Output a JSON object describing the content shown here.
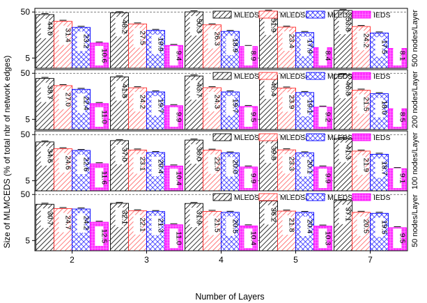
{
  "chart_data": {
    "type": "bar",
    "ylabel": "Size of MLMCEDS (% of total nbr of network edges)",
    "xlabel": "Number of Layers",
    "categories": [
      "2",
      "3",
      "4",
      "5",
      "7"
    ],
    "yscale": "log",
    "ylim": [
      3,
      60
    ],
    "yticks": [
      "5",
      "50"
    ],
    "gridlines": [
      5,
      50
    ],
    "legend_position": "top-right",
    "series_styles": [
      {
        "name": "MLEDS#1",
        "color": "#d9d9d9",
        "pattern": "diag-black"
      },
      {
        "name": "MLEDS#2",
        "color": "#ff8080",
        "pattern": "diag-red"
      },
      {
        "name": "MLEDS#3",
        "color": "#1a1aff",
        "pattern": "cross-blue"
      },
      {
        "name": "IEDS",
        "color": "#ff33ff",
        "pattern": "grid-magenta"
      }
    ],
    "panels": [
      {
        "side_label": "500 nodes/Layer",
        "series": [
          {
            "name": "MLEDS#1",
            "values": [
              44.0,
              48.2,
              50.3,
              51.9,
              53.8
            ],
            "labels": [
              "44.0",
              "48.2",
              "50.3",
              "51.9",
              "53.8"
            ]
          },
          {
            "name": "MLEDS#2",
            "values": [
              31.4,
              27.5,
              26.3,
              23.4,
              24.2
            ],
            "labels": [
              "31.4",
              "27.5",
              "26.3",
              "23.4",
              "24.2"
            ]
          },
          {
            "name": "MLEDS#3",
            "values": [
              23.2,
              19.9,
              18.9,
              17.9,
              17.5
            ],
            "labels": [
              "23.2",
              "19.9",
              "18.9",
              "17.9",
              "17.5"
            ]
          },
          {
            "name": "IEDS",
            "values": [
              10.6,
              9.4,
              8.9,
              8.4,
              8.1
            ],
            "labels": [
              "10.6",
              "9.4",
              "8.9",
              "8.4",
              "8.1"
            ]
          }
        ]
      },
      {
        "side_label": "200 nodes/Layer",
        "series": [
          {
            "name": "MLEDS#1",
            "values": [
              38.7,
              41.8,
              43.7,
              45.4,
              46.8
            ],
            "labels": [
              "38.7",
              "41.8",
              "43.7",
              "45.4",
              "46.8"
            ]
          },
          {
            "name": "MLEDS#2",
            "values": [
              27.0,
              24.2,
              24.3,
              23.9,
              21.5
            ],
            "labels": [
              "27.0",
              "24.2",
              "24.3",
              "23.9",
              "21.5"
            ]
          },
          {
            "name": "MLEDS#3",
            "values": [
              22.4,
              19.7,
              19.7,
              19.1,
              18.0
            ],
            "labels": [
              "22.4",
              "19.7",
              "19.7",
              "19.1",
              "18.0"
            ]
          },
          {
            "name": "IEDS",
            "values": [
              11.0,
              9.9,
              9.5,
              9.2,
              8.5
            ],
            "labels": [
              "11.0",
              "9.9",
              "9.5",
              "9.2",
              "8.5"
            ]
          }
        ]
      },
      {
        "side_label": "100 nodes/Layer",
        "series": [
          {
            "name": "MLEDS#1",
            "values": [
              34.6,
              37.0,
              38.0,
              39.8,
              41.3
            ],
            "labels": [
              "34.6",
              "37.0",
              "38.0",
              "39.8",
              "41.3"
            ]
          },
          {
            "name": "MLEDS#2",
            "values": [
              24.6,
              23.1,
              22.9,
              23.3,
              21.9
            ],
            "labels": [
              "24.6",
              "23.1",
              "22.9",
              "23.3",
              "21.9"
            ]
          },
          {
            "name": "MLEDS#3",
            "values": [
              22.6,
              20.4,
              20.0,
              20.1,
              18.7
            ],
            "labels": [
              "22.6",
              "20.4",
              "20.0",
              "20.1",
              "18.7"
            ]
          },
          {
            "name": "IEDS",
            "values": [
              11.6,
              10.4,
              9.9,
              9.9,
              9.1
            ],
            "labels": [
              "11.6",
              "10.4",
              "9.9",
              "9.9",
              "9.1"
            ]
          }
        ]
      },
      {
        "side_label": "50 nodes/Layer",
        "series": [
          {
            "name": "MLEDS#1",
            "values": [
              30.7,
              32.1,
              31.9,
              36.2,
              37.1
            ],
            "labels": [
              "30.7",
              "32.1",
              "31.9",
              "36.2",
              "37.1"
            ]
          },
          {
            "name": "MLEDS#2",
            "values": [
              24.7,
              22.1,
              21.5,
              21.8,
              20.5
            ],
            "labels": [
              "24.7",
              "22.1",
              "21.5",
              "21.8",
              "20.5"
            ]
          },
          {
            "name": "MLEDS#3",
            "values": [
              24.2,
              21.3,
              20.5,
              20.4,
              19.5
            ],
            "labels": [
              "24.2",
              "21.3",
              "20.5",
              "20.4",
              "19.5"
            ]
          },
          {
            "name": "IEDS",
            "values": [
              12.5,
              11.0,
              10.4,
              10.3,
              9.5
            ],
            "labels": [
              "12.5",
              "11.0",
              "10.4",
              "10.3",
              "9.5"
            ]
          }
        ]
      }
    ]
  }
}
